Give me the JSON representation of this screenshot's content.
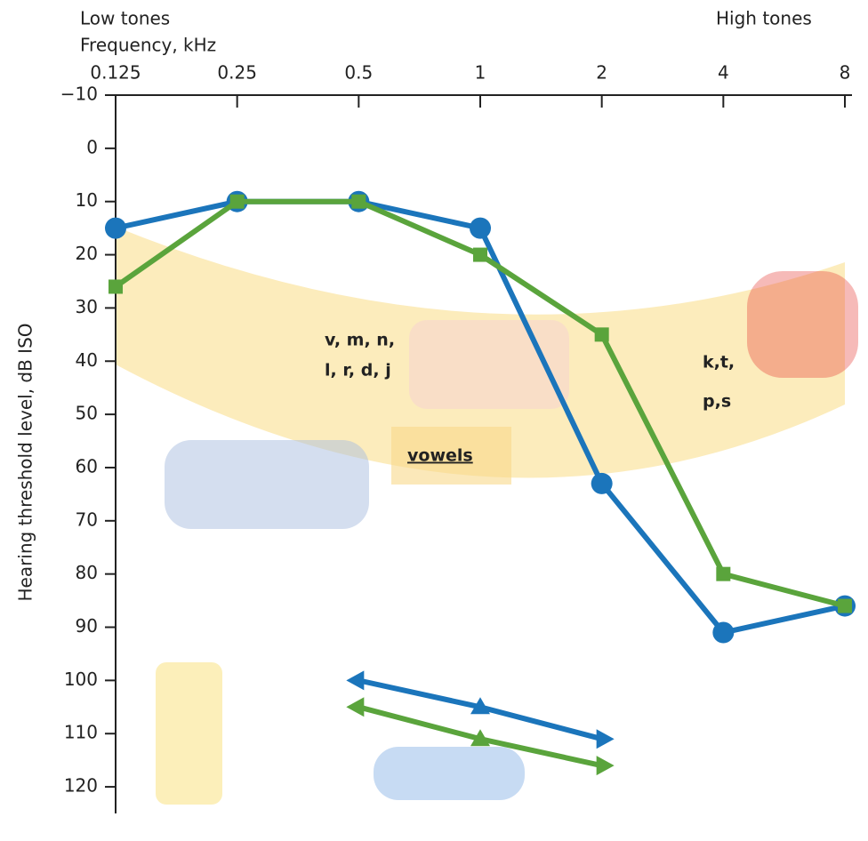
{
  "chart_data": {
    "type": "line",
    "header_left": "Low tones",
    "x_label": "Frequency, kHz",
    "header_right": "High tones",
    "y_label": "Hearing threshold level, dB ISO",
    "xscale": "log",
    "xlim": [
      0.125,
      8
    ],
    "xticks": [
      0.125,
      0.25,
      0.5,
      1,
      2,
      4,
      8
    ],
    "ylim": [
      -10,
      125
    ],
    "yinverted": true,
    "yticks": [
      {
        "value": -10,
        "label": "−10"
      },
      0,
      10,
      20,
      30,
      40,
      50,
      60,
      70,
      80,
      90,
      100,
      110,
      120
    ],
    "x": [
      0.125,
      0.25,
      0.5,
      1,
      2,
      4,
      8
    ],
    "series": [
      {
        "color": "#1b75bb",
        "marker": "circle",
        "values": [
          15,
          10,
          10,
          15,
          63,
          91,
          86
        ]
      },
      {
        "color": "#5aa43c",
        "marker": "square",
        "values": [
          26,
          10,
          10,
          20,
          35,
          80,
          86
        ]
      }
    ],
    "arrows": [
      {
        "color": "#1b75bb",
        "x": [
          0.5,
          1,
          2
        ],
        "values": [
          100,
          105,
          111
        ]
      },
      {
        "color": "#5aa43c",
        "x": [
          0.5,
          1,
          2
        ],
        "values": [
          105,
          111,
          116
        ]
      }
    ],
    "annotations": [
      "v, m, n,",
      "l, r, d, j",
      "k,t,",
      "p,s",
      "vowels"
    ]
  }
}
